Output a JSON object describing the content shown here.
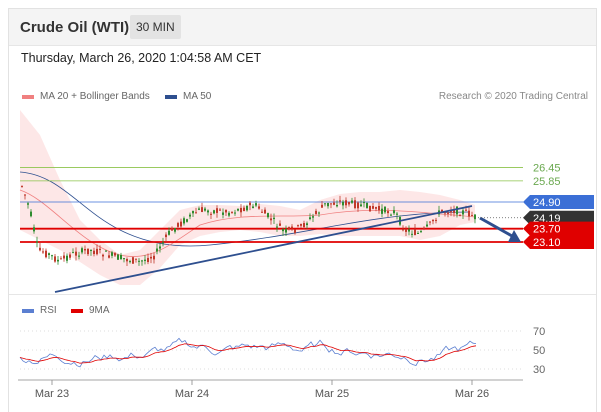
{
  "header": {
    "title": "Crude Oil (WTI)",
    "timeframe": "30 MIN"
  },
  "datetime": "Thursday, March 26, 2020 1:04:58 AM CET",
  "legend": {
    "items": [
      {
        "label": "MA 20 + Bollinger Bands",
        "color": "#f08080"
      },
      {
        "label": "MA 50",
        "color": "#2e4f8f"
      }
    ],
    "credit": "Research © 2020 Trading Central"
  },
  "rsi_legend": {
    "items": [
      {
        "label": "RSI",
        "color": "#5b7fd1"
      },
      {
        "label": "9MA",
        "color": "#e00000"
      }
    ]
  },
  "chart_data": {
    "type": "candlestick",
    "x_labels": [
      "Mar 23",
      "Mar 24",
      "Mar 25",
      "Mar 26"
    ],
    "levels": [
      {
        "value": 26.45,
        "label": "26.45",
        "kind": "resistance"
      },
      {
        "value": 25.85,
        "label": "25.85",
        "kind": "resistance"
      },
      {
        "value": 24.9,
        "label": "24.90",
        "kind": "pivot"
      },
      {
        "value": 24.19,
        "label": "24.19",
        "kind": "last-price"
      },
      {
        "value": 23.7,
        "label": "23.70",
        "kind": "support"
      },
      {
        "value": 23.1,
        "label": "23.10",
        "kind": "support"
      }
    ],
    "rsi_ticks": [
      70,
      50,
      30
    ]
  },
  "colors": {
    "up": "#2e8b2e",
    "down": "#c0392b",
    "pivot": "#3b6fd6",
    "support": "#e00000",
    "resistance": "#8bc34a"
  }
}
